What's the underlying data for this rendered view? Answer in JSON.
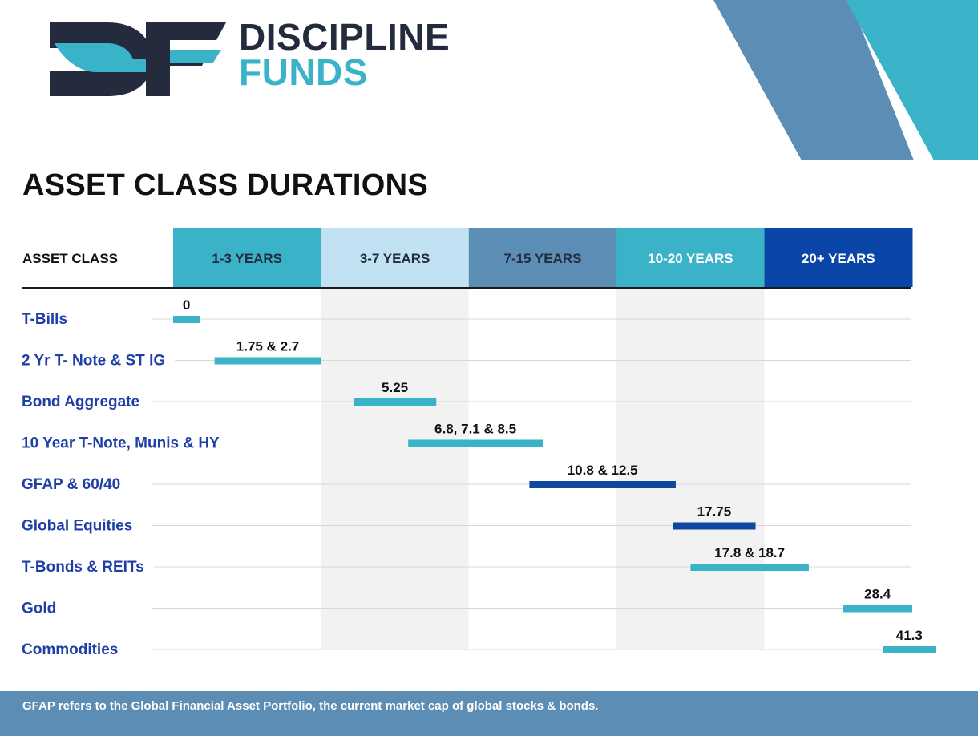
{
  "brand": {
    "logo_text": "DF",
    "name_line1": "DISCIPLINE",
    "name_line2": "FUNDS",
    "colors": {
      "dark": "#232b3c",
      "teal": "#3ab3c9",
      "steel": "#5b8db5"
    }
  },
  "page_title": "ASSET CLASS DURATIONS",
  "chart_data": {
    "type": "bar",
    "orientation": "horizontal-range",
    "title": "ASSET CLASS DURATIONS",
    "row_header": "ASSET CLASS",
    "xlabel": "",
    "ylabel": "",
    "grid": true,
    "bands": [
      {
        "label": "1-3 YEARS",
        "color": "#3ab3c9",
        "text_color": "#232b3c",
        "shaded": false
      },
      {
        "label": "3-7 YEARS",
        "color": "#c2e2f4",
        "text_color": "#232b3c",
        "shaded": true
      },
      {
        "label": "7-15 YEARS",
        "color": "#5b8db5",
        "text_color": "#232b3c",
        "shaded": false
      },
      {
        "label": "10-20 YEARS",
        "color": "#3ab3c9",
        "text_color": "#ffffff",
        "shaded": true
      },
      {
        "label": "20+ YEARS",
        "color": "#0a45a8",
        "text_color": "#ffffff",
        "shaded": false
      }
    ],
    "rows": [
      {
        "name": "T-Bills",
        "label": "0",
        "start": 0.0,
        "end": 0.18,
        "color": "#3ab3c9"
      },
      {
        "name": "2 Yr T- Note & ST IG",
        "label": "1.75 & 2.7",
        "start": 0.28,
        "end": 1.0,
        "color": "#3ab3c9"
      },
      {
        "name": "Bond Aggregate",
        "label": "5.25",
        "start": 1.22,
        "end": 1.78,
        "color": "#3ab3c9"
      },
      {
        "name": "10 Year T-Note, Munis & HY",
        "label": "6.8, 7.1 & 8.5",
        "start": 1.59,
        "end": 2.5,
        "color": "#3ab3c9"
      },
      {
        "name": "GFAP & 60/40",
        "label": "10.8 & 12.5",
        "start": 2.41,
        "end": 3.4,
        "color": "#0d47a1"
      },
      {
        "name": "Global Equities",
        "label": "17.75",
        "start": 3.38,
        "end": 3.94,
        "color": "#0d47a1"
      },
      {
        "name": "T-Bonds & REITs",
        "label": "17.8 & 18.7",
        "start": 3.5,
        "end": 4.3,
        "color": "#3ab3c9"
      },
      {
        "name": "Gold",
        "label": "28.4",
        "start": 4.53,
        "end": 5.0,
        "color": "#3ab3c9"
      },
      {
        "name": "Commodities",
        "label": "41.3",
        "start": 4.8,
        "end": 5.16,
        "color": "#3ab3c9"
      }
    ],
    "colors": {
      "row_label": "#1f3fa6",
      "grid": "#d8d8d8",
      "band_shade": "#f2f2f2",
      "axis": "#1a1a1a"
    }
  },
  "footer": {
    "note": "GFAP refers to the Global Financial Asset Portfolio, the current market cap of global stocks & bonds."
  }
}
